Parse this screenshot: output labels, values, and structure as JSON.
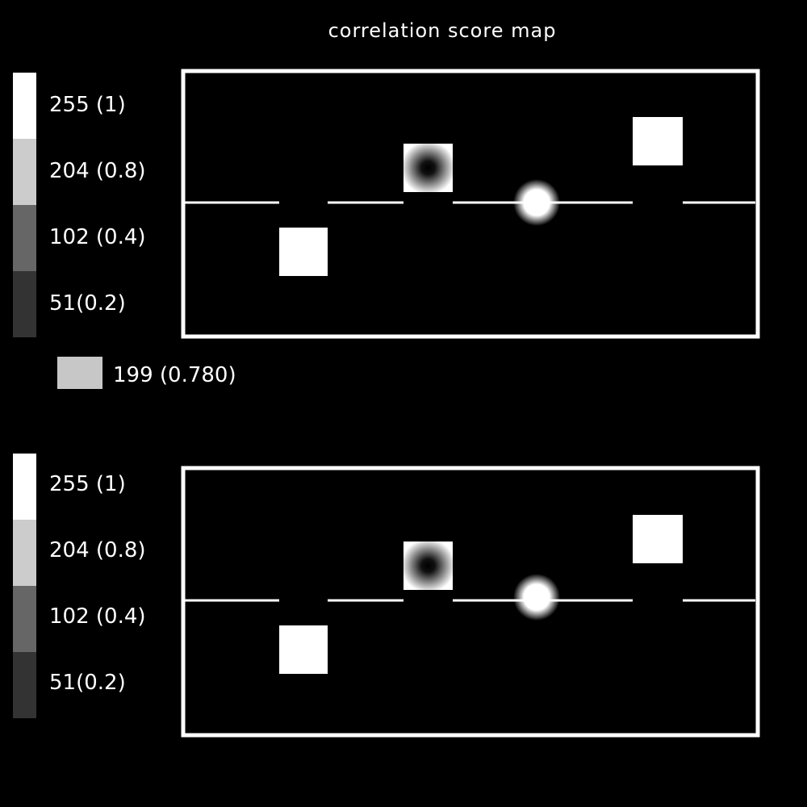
{
  "title": "correlation score map",
  "legend": {
    "levels": [
      {
        "label": "255 (1)",
        "color": "#ffffff"
      },
      {
        "label": "204 (0.8)",
        "color": "#cccccc"
      },
      {
        "label": "102 (0.4)",
        "color": "#666666"
      },
      {
        "label": "51(0.2)",
        "color": "#333333"
      }
    ]
  },
  "sample": {
    "label": "199 (0.780)",
    "color": "#c7c7c7"
  },
  "colors": {
    "background": "#000000",
    "foreground": "#ffffff"
  }
}
